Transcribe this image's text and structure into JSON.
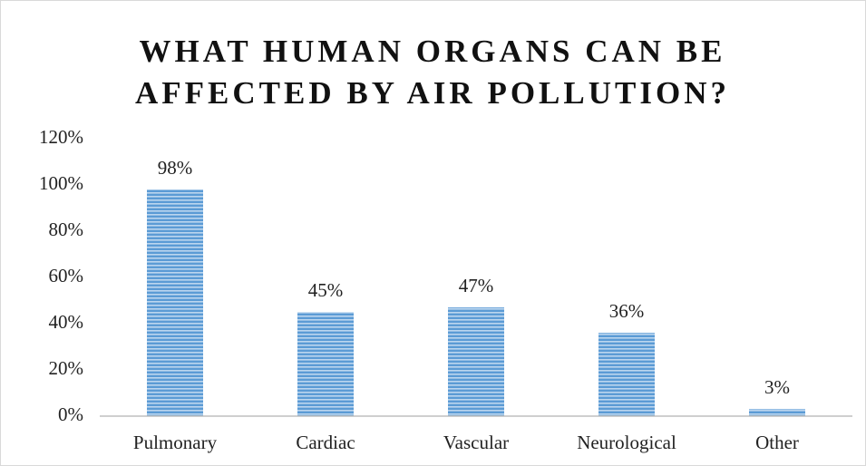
{
  "chart_data": {
    "type": "bar",
    "title": "WHAT HUMAN ORGANS CAN BE AFFECTED BY AIR POLLUTION?",
    "categories": [
      "Pulmonary",
      "Cardiac",
      "Vascular",
      "Neurological",
      "Other"
    ],
    "values": [
      98,
      45,
      47,
      36,
      3
    ],
    "value_labels": [
      "98%",
      "45%",
      "47%",
      "36%",
      "3%"
    ],
    "color": "#5b9bd5",
    "ylim": [
      0,
      120
    ],
    "yticks": [
      {
        "value": 0,
        "label": "0%"
      },
      {
        "value": 20,
        "label": "20%"
      },
      {
        "value": 40,
        "label": "40%"
      },
      {
        "value": 60,
        "label": "60%"
      },
      {
        "value": 80,
        "label": "80%"
      },
      {
        "value": 100,
        "label": "100%"
      },
      {
        "value": 120,
        "label": "120%"
      }
    ],
    "grid": false
  }
}
